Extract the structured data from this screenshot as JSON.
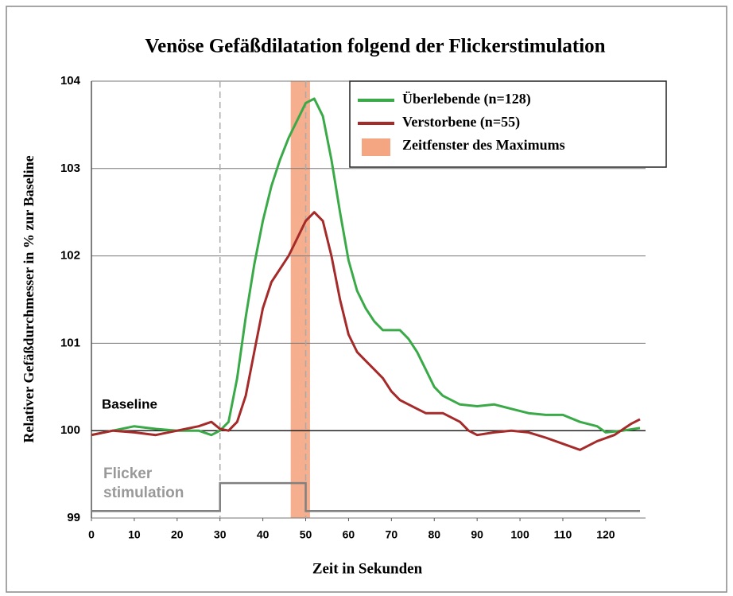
{
  "chart_data": {
    "type": "line",
    "title": "Venöse Gefäßdilatation folgend der Flickerstimulation",
    "x_label": "Zeit in Sekunden",
    "y_label": "Relativer Gefäßdurchmesser in % zur Baseline",
    "xlim": [
      0,
      128
    ],
    "ylim": [
      99,
      104
    ],
    "xticks": [
      0,
      10,
      20,
      30,
      40,
      50,
      60,
      70,
      80,
      90,
      100,
      110,
      120
    ],
    "yticks": [
      99,
      100,
      101,
      102,
      103,
      104
    ],
    "grid": true,
    "legend": "upper right",
    "series": [
      {
        "name": "Überlebende (n=128)",
        "color": "#3aaa48",
        "x": [
          0,
          5,
          10,
          15,
          20,
          25,
          28,
          30,
          32,
          34,
          36,
          38,
          40,
          42,
          44,
          46,
          48,
          50,
          52,
          54,
          56,
          58,
          60,
          62,
          64,
          66,
          68,
          70,
          72,
          74,
          76,
          78,
          80,
          82,
          84,
          86,
          90,
          94,
          98,
          102,
          106,
          110,
          114,
          118,
          120,
          124,
          128
        ],
        "values": [
          99.95,
          100.0,
          100.05,
          100.02,
          100.0,
          100.0,
          99.95,
          100.0,
          100.1,
          100.6,
          101.3,
          101.9,
          102.4,
          102.8,
          103.1,
          103.35,
          103.55,
          103.75,
          103.8,
          103.6,
          103.1,
          102.5,
          101.95,
          101.6,
          101.4,
          101.25,
          101.15,
          101.15,
          101.15,
          101.05,
          100.9,
          100.7,
          100.5,
          100.4,
          100.35,
          100.3,
          100.28,
          100.3,
          100.25,
          100.2,
          100.18,
          100.18,
          100.1,
          100.05,
          99.98,
          100.0,
          100.03
        ]
      },
      {
        "name": "Verstorbene (n=55)",
        "color": "#a52a2a",
        "x": [
          0,
          5,
          10,
          15,
          20,
          25,
          28,
          30,
          32,
          34,
          36,
          38,
          40,
          42,
          44,
          46,
          48,
          50,
          52,
          54,
          56,
          58,
          60,
          62,
          64,
          66,
          68,
          70,
          72,
          74,
          76,
          78,
          80,
          82,
          84,
          86,
          88,
          90,
          94,
          98,
          102,
          106,
          110,
          114,
          118,
          122,
          126,
          128
        ],
        "values": [
          99.95,
          100.0,
          99.98,
          99.95,
          100.0,
          100.05,
          100.1,
          100.02,
          100.0,
          100.1,
          100.4,
          100.9,
          101.4,
          101.7,
          101.85,
          102.0,
          102.2,
          102.4,
          102.5,
          102.4,
          102.0,
          101.5,
          101.1,
          100.9,
          100.8,
          100.7,
          100.6,
          100.45,
          100.35,
          100.3,
          100.25,
          100.2,
          100.2,
          100.2,
          100.15,
          100.1,
          100.0,
          99.95,
          99.98,
          100.0,
          99.98,
          99.92,
          99.85,
          99.78,
          99.88,
          99.95,
          100.08,
          100.13
        ]
      }
    ],
    "window": {
      "name": "Zeitfenster des Maximums",
      "color": "#f4a582",
      "range": [
        46.5,
        51
      ]
    },
    "markers": [
      30,
      50
    ],
    "baseline": {
      "label": "Baseline",
      "value": 100
    },
    "stimulus": {
      "label": [
        "Flicker",
        "stimulation"
      ],
      "color": "#808080",
      "x": [
        0,
        30,
        30,
        50,
        50,
        128
      ],
      "values": [
        99.08,
        99.08,
        99.4,
        99.4,
        99.08,
        99.08
      ]
    }
  }
}
